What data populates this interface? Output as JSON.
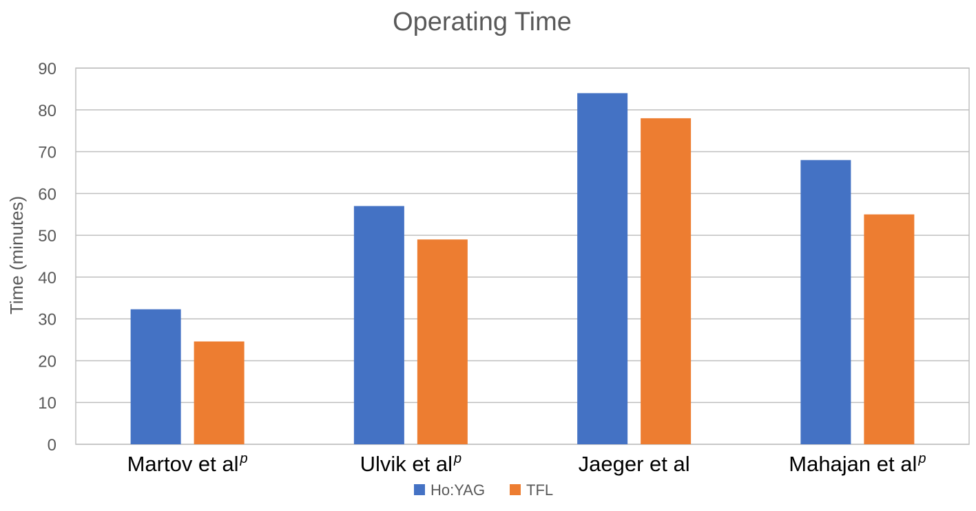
{
  "chart_data": {
    "type": "bar",
    "title": "Operating Time",
    "ylabel": "Time (minutes)",
    "xlabel": "",
    "ylim": [
      0,
      90
    ],
    "yticks": [
      0,
      10,
      20,
      30,
      40,
      50,
      60,
      70,
      80,
      90
    ],
    "grid": true,
    "legend_position": "bottom",
    "categories": [
      {
        "name": "Martov et al",
        "sup": "p"
      },
      {
        "name": "Ulvik et al",
        "sup": "p"
      },
      {
        "name": "Jaeger et al",
        "sup": ""
      },
      {
        "name": "Mahajan et al",
        "sup": "p"
      }
    ],
    "series": [
      {
        "name": "Ho:YAG",
        "color": "#4472c4",
        "values": [
          32.3,
          57,
          84,
          68
        ]
      },
      {
        "name": "TFL",
        "color": "#ed7d31",
        "values": [
          24.6,
          49,
          78,
          55
        ]
      }
    ]
  }
}
